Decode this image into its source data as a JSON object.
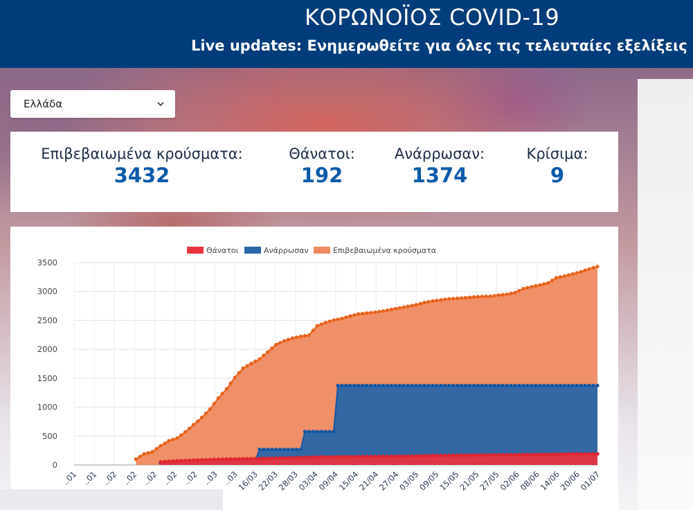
{
  "header": {
    "title": "ΚΟΡΩΝΟΪΟΣ COVID-19",
    "subtitle": "Live updates: Ενημερωθείτε για όλες τις τελευταίες εξελίξεις",
    "background": "#003d7a"
  },
  "country_select": {
    "value": "Ελλάδα",
    "icon": "chevron-down-icon"
  },
  "stats": [
    {
      "label": "Επιβεβαιωμένα κρούσματα:",
      "value": "3432"
    },
    {
      "label": "Θάνατοι:",
      "value": "192"
    },
    {
      "label": "Ανάρρωσαν:",
      "value": "1374"
    },
    {
      "label": "Κρίσιμα:",
      "value": "9"
    }
  ],
  "colors": {
    "deaths": "#e8343f",
    "recovered": "#2966a8",
    "confirmed": "#ef8a60",
    "confirmed_line": "#e8621a",
    "recovered_line": "#1356a5",
    "deaths_line": "#e0252f",
    "stat_value": "#0b5aa8"
  },
  "chart_data": {
    "type": "area",
    "legend": [
      "Θάνατοι",
      "Ανάρρωσαν",
      "Επιβεβαιωμένα κρούσματα"
    ],
    "legend_position": "top-center",
    "ylim": [
      0,
      3500
    ],
    "yticks": [
      0,
      500,
      1000,
      1500,
      2000,
      2500,
      3000,
      3500
    ],
    "grid": true,
    "xticks": [
      "..01",
      "..01",
      "..02",
      "..02",
      "..02",
      "..02",
      "..02",
      "..03",
      "..03",
      "16/03",
      "22/03",
      "28/03",
      "03/04",
      "09/04",
      "15/04",
      "21/04",
      "27/04",
      "03/05",
      "09/05",
      "15/05",
      "21/05",
      "27/05",
      "02/06",
      "08/06",
      "14/06",
      "20/06",
      "01/07"
    ],
    "series": [
      {
        "name": "Επιβεβαιωμένα κρούσματα",
        "points": [
          [
            0,
            0
          ],
          [
            3,
            4
          ],
          [
            7,
            6
          ],
          [
            9,
            31
          ],
          [
            11,
            66
          ],
          [
            13,
            73
          ],
          [
            15,
            99
          ],
          [
            17,
            190
          ],
          [
            19,
            228
          ],
          [
            21,
            331
          ],
          [
            23,
            418
          ],
          [
            25,
            464
          ],
          [
            27,
            571
          ],
          [
            29,
            695
          ],
          [
            31,
            821
          ],
          [
            33,
            966
          ],
          [
            35,
            1156
          ],
          [
            37,
            1314
          ],
          [
            39,
            1514
          ],
          [
            41,
            1673
          ],
          [
            43,
            1755
          ],
          [
            45,
            1832
          ],
          [
            47,
            1955
          ],
          [
            49,
            2081
          ],
          [
            51,
            2145
          ],
          [
            53,
            2192
          ],
          [
            55,
            2224
          ],
          [
            57,
            2245
          ],
          [
            59,
            2408
          ],
          [
            61,
            2463
          ],
          [
            63,
            2506
          ],
          [
            65,
            2534
          ],
          [
            67,
            2576
          ],
          [
            69,
            2612
          ],
          [
            71,
            2626
          ],
          [
            73,
            2642
          ],
          [
            75,
            2663
          ],
          [
            77,
            2691
          ],
          [
            79,
            2716
          ],
          [
            81,
            2744
          ],
          [
            83,
            2770
          ],
          [
            85,
            2810
          ],
          [
            87,
            2836
          ],
          [
            89,
            2853
          ],
          [
            91,
            2873
          ],
          [
            93,
            2882
          ],
          [
            95,
            2894
          ],
          [
            97,
            2906
          ],
          [
            99,
            2915
          ],
          [
            101,
            2918
          ],
          [
            103,
            2937
          ],
          [
            105,
            2952
          ],
          [
            107,
            2980
          ],
          [
            109,
            3049
          ],
          [
            111,
            3083
          ],
          [
            113,
            3112
          ],
          [
            115,
            3148
          ],
          [
            117,
            3237
          ],
          [
            119,
            3266
          ],
          [
            121,
            3302
          ],
          [
            123,
            3343
          ],
          [
            125,
            3390
          ],
          [
            127,
            3432
          ]
        ]
      },
      {
        "name": "Ανάρρωσαν",
        "points": [
          [
            0,
            0
          ],
          [
            30,
            52
          ],
          [
            33,
            52
          ],
          [
            34,
            79
          ],
          [
            44,
            79
          ],
          [
            45,
            269
          ],
          [
            55,
            269
          ],
          [
            56,
            577
          ],
          [
            63,
            577
          ],
          [
            64,
            1374
          ],
          [
            127,
            1374
          ]
        ]
      },
      {
        "name": "Θάνατοι",
        "points": [
          [
            0,
            0
          ],
          [
            5,
            5
          ],
          [
            10,
            15
          ],
          [
            15,
            26
          ],
          [
            20,
            49
          ],
          [
            25,
            73
          ],
          [
            30,
            86
          ],
          [
            35,
            99
          ],
          [
            40,
            105
          ],
          [
            45,
            113
          ],
          [
            50,
            121
          ],
          [
            55,
            130
          ],
          [
            60,
            139
          ],
          [
            70,
            146
          ],
          [
            80,
            152
          ],
          [
            90,
            166
          ],
          [
            100,
            173
          ],
          [
            110,
            180
          ],
          [
            120,
            190
          ],
          [
            127,
            192
          ]
        ]
      }
    ]
  }
}
